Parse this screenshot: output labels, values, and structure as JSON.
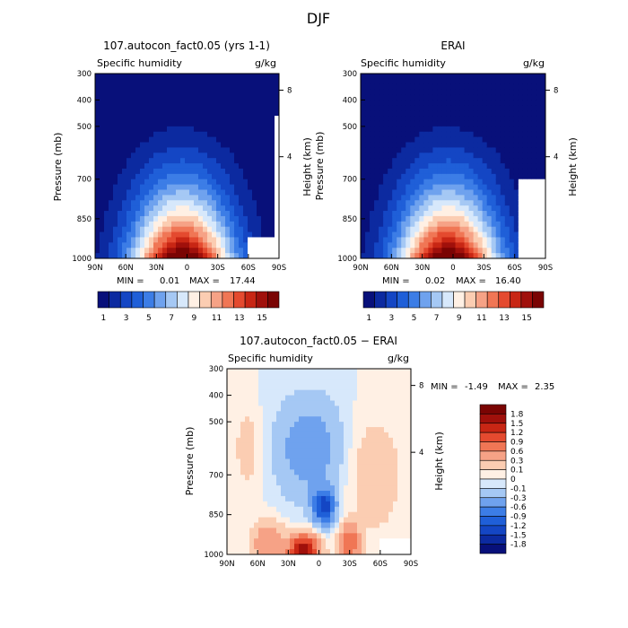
{
  "figure": {
    "title": "DJF"
  },
  "colors": {
    "panel_scale": [
      "#08107a",
      "#0c2aa0",
      "#1446c4",
      "#1f5fd8",
      "#3c7de6",
      "#6fa2ee",
      "#a5c8f4",
      "#d7e8fb",
      "#fff0e4",
      "#fbcdb2",
      "#f6a286",
      "#f07655",
      "#e44a2f",
      "#c82614",
      "#a0100b",
      "#7a0403"
    ],
    "diff_scale": [
      "#08107a",
      "#0c2aa0",
      "#1446c4",
      "#1f5fd8",
      "#3c7de6",
      "#6fa2ee",
      "#a5c8f4",
      "#d7e8fb",
      "#fff0e4",
      "#fbcdb2",
      "#f6a286",
      "#f07655",
      "#e44a2f",
      "#c82614",
      "#a0100b",
      "#7a0403"
    ]
  },
  "chart_data": [
    {
      "type": "heatmap",
      "title": "107.autocon_fact0.05 (yrs 1-1)",
      "subtitle": "Specific humidity",
      "units": "g/kg",
      "ylabel": "Pressure (mb)",
      "ylabel_right": "Height (km)",
      "x_ticks": [
        "90N",
        "60N",
        "30N",
        "0",
        "30S",
        "60S",
        "90S"
      ],
      "y_ticks": [
        300,
        400,
        500,
        700,
        850,
        1000
      ],
      "y_ticks_right": [
        8,
        4
      ],
      "ylim": [
        1000,
        300
      ],
      "stats": {
        "min_label": "MIN =",
        "min": "0.01",
        "max_label": "MAX =",
        "max": "17.44"
      },
      "colorbar_labels": [
        "1",
        "3",
        "5",
        "7",
        "9",
        "11",
        "13",
        "15"
      ]
    },
    {
      "type": "heatmap",
      "title": "ERAI",
      "subtitle": "Specific humidity",
      "units": "g/kg",
      "ylabel": "Pressure (mb)",
      "ylabel_right": "Height (km)",
      "x_ticks": [
        "90N",
        "60N",
        "30N",
        "0",
        "30S",
        "60S",
        "90S"
      ],
      "y_ticks": [
        300,
        400,
        500,
        700,
        850,
        1000
      ],
      "y_ticks_right": [
        8,
        4
      ],
      "ylim": [
        1000,
        300
      ],
      "stats": {
        "min_label": "MIN =",
        "min": "0.02",
        "max_label": "MAX =",
        "max": "16.40"
      },
      "colorbar_labels": [
        "1",
        "3",
        "5",
        "7",
        "9",
        "11",
        "13",
        "15"
      ]
    },
    {
      "type": "heatmap",
      "title": "107.autocon_fact0.05 − ERAI",
      "subtitle": "Specific humidity",
      "units": "g/kg",
      "ylabel": "Pressure (mb)",
      "ylabel_right": "Height (km)",
      "x_ticks": [
        "90N",
        "60N",
        "30N",
        "0",
        "30S",
        "60S",
        "90S"
      ],
      "y_ticks": [
        300,
        400,
        500,
        700,
        850,
        1000
      ],
      "y_ticks_right": [
        8,
        4
      ],
      "ylim": [
        1000,
        300
      ],
      "stats": {
        "min_label": "MIN =",
        "min": "-1.49",
        "max_label": "MAX =",
        "max": "2.35"
      },
      "colorbar_labels": [
        "1.8",
        "1.5",
        "1.2",
        "0.9",
        "0.6",
        "0.3",
        "0.1",
        "0",
        "-0.1",
        "-0.3",
        "-0.6",
        "-0.9",
        "-1.2",
        "-1.5",
        "-1.8"
      ]
    }
  ]
}
